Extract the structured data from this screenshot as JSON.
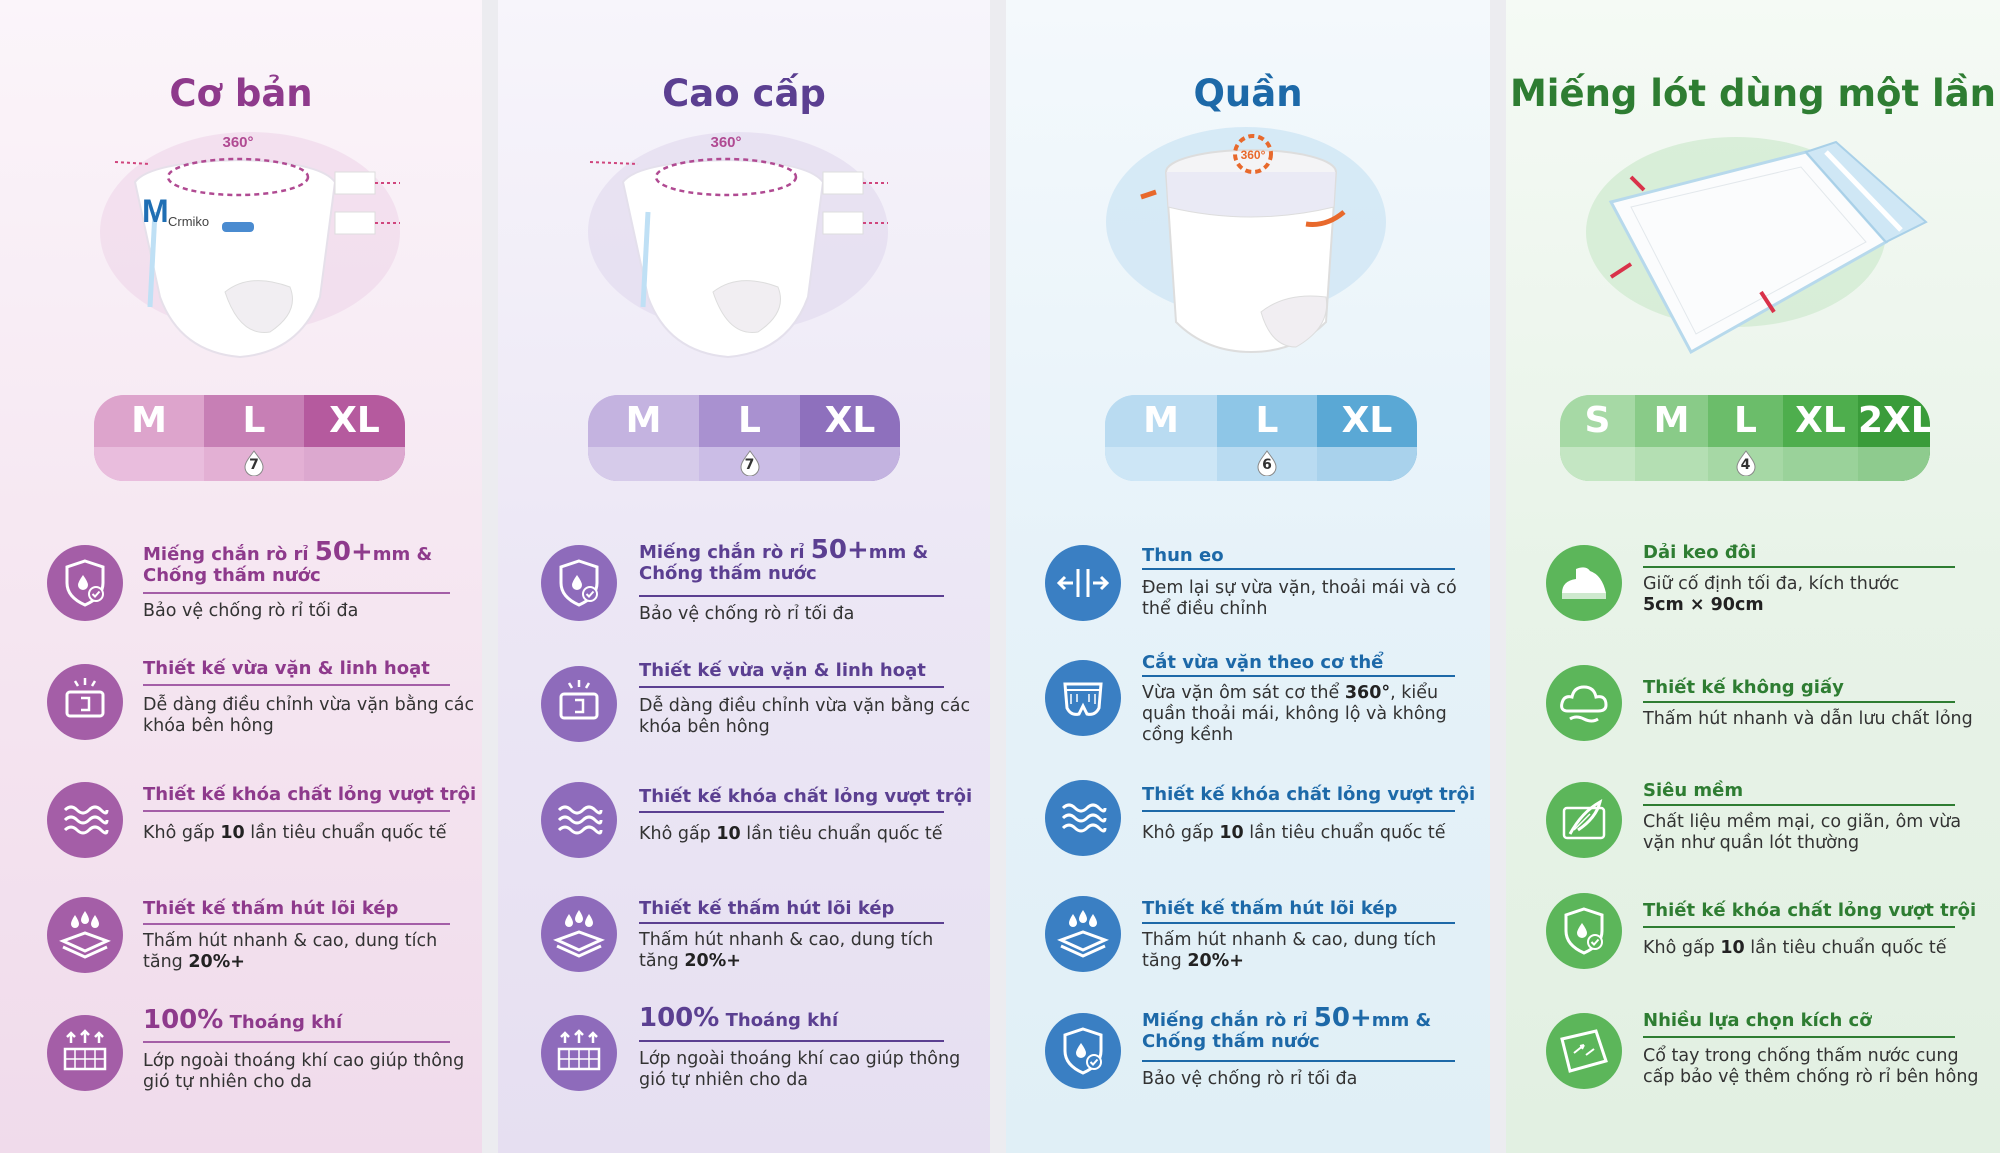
{
  "colors": {
    "panel1_accent": "#8e3a8c",
    "panel2_accent": "#5b3f91",
    "panel3_accent": "#1d69a8",
    "panel4_accent": "#2e7d32",
    "icon1": "#a45ea7",
    "icon2": "#8e6bbb",
    "icon3": "#3a7fc3",
    "icon4": "#5cb65a"
  },
  "panels": [
    {
      "title": "Cơ bản",
      "illus_label": "360°",
      "brand_text": "Crmiko",
      "size_labels": [
        "M",
        "L",
        "XL"
      ],
      "drop_count": "7",
      "features": [
        {
          "title_pre": "Miếng chắn rò rỉ ",
          "title_big": "50+",
          "title_post": "mm &",
          "title_line2": "Chống thấm nước",
          "desc": "Bảo vệ chống rò rỉ tối đa",
          "desc_bold": "",
          "icon": "shield-drop-icon"
        },
        {
          "title_pre": "Thiết kế vừa vặn & linh hoạt",
          "title_big": "",
          "title_post": "",
          "title_line2": "",
          "desc": "Dễ dàng điều chỉnh vừa vặn bằng các",
          "desc2": "khóa bên hông",
          "desc_bold": "",
          "icon": "adjust-tab-icon"
        },
        {
          "title_pre": "Thiết kế khóa chất lỏng vượt trội",
          "title_big": "",
          "title_post": "",
          "title_line2": "",
          "desc_a": "Khô gấp ",
          "desc_bold": "10",
          "desc_b": " lần tiêu chuẩn quốc tế",
          "icon": "waves-icon"
        },
        {
          "title_pre": "Thiết kế thấm hút lõi kép",
          "title_big": "",
          "title_post": "",
          "title_line2": "",
          "desc": "Thấm hút nhanh & cao, dung tích",
          "desc2_a": "tăng ",
          "desc2_bold": "20%+",
          "icon": "absorb-core-icon"
        },
        {
          "title_big_pre": "100%",
          "title_pre": " Thoáng khí",
          "title_line2": "",
          "desc": "Lớp ngoài thoáng khí cao giúp thông",
          "desc2": "gió tự nhiên cho da",
          "icon": "breathable-icon"
        }
      ]
    },
    {
      "title": "Cao cấp",
      "illus_label": "360°",
      "size_labels": [
        "M",
        "L",
        "XL"
      ],
      "drop_count": "7",
      "features": [
        {
          "title_pre": "Miếng chắn rò rỉ ",
          "title_big": "50+",
          "title_post": "mm &",
          "title_line2": "Chống thấm nước",
          "desc": "Bảo vệ chống rò rỉ tối đa",
          "icon": "shield-drop-icon"
        },
        {
          "title_pre": "Thiết kế vừa vặn & linh hoạt",
          "desc": "Dễ dàng điều chỉnh vừa vặn bằng các",
          "desc2": "khóa bên hông",
          "icon": "adjust-tab-icon"
        },
        {
          "title_pre": "Thiết kế khóa chất lỏng vượt trội",
          "desc_a": "Khô gấp ",
          "desc_bold": "10",
          "desc_b": " lần tiêu chuẩn quốc tế",
          "icon": "waves-icon"
        },
        {
          "title_pre": "Thiết kế thấm hút lõi kép",
          "desc": "Thấm hút nhanh & cao, dung tích",
          "desc2_a": "tăng ",
          "desc2_bold": "20%+",
          "icon": "absorb-core-icon"
        },
        {
          "title_big_pre": "100%",
          "title_pre": " Thoáng khí",
          "desc": "Lớp ngoài thoáng khí cao giúp thông",
          "desc2": "gió tự nhiên cho da",
          "icon": "breathable-icon"
        }
      ]
    },
    {
      "title": "Quần",
      "illus_label": "360°",
      "size_labels": [
        "M",
        "L",
        "XL"
      ],
      "drop_count": "6",
      "features": [
        {
          "title_pre": "Thun eo",
          "desc": "Đem lại sự vừa vặn, thoải mái và có",
          "desc2": "thể điều chỉnh",
          "icon": "stretch-waist-icon"
        },
        {
          "title_pre": "Cắt vừa vặn theo cơ thể",
          "desc_a": "Vừa vặn ôm sát cơ thể ",
          "desc_bold": "360°",
          "desc_b": ", kiểu",
          "desc2": "quần thoải mái, không lộ và không",
          "desc3": "cồng kềnh",
          "icon": "pants-icon"
        },
        {
          "title_pre": "Thiết kế khóa chất lỏng vượt trội",
          "desc_a": "Khô gấp ",
          "desc_bold": "10",
          "desc_b": " lần tiêu chuẩn quốc tế",
          "icon": "waves-icon"
        },
        {
          "title_pre": "Thiết kế thấm hút lõi kép",
          "desc": "Thấm hút nhanh & cao, dung tích",
          "desc2_a": "tăng ",
          "desc2_bold": "20%+",
          "icon": "absorb-core-icon"
        },
        {
          "title_pre": "Miếng chắn rò rỉ ",
          "title_big": "50+",
          "title_post": "mm &",
          "title_line2": "Chống thấm nước",
          "desc": "Bảo vệ chống rò rỉ tối đa",
          "icon": "shield-drop-icon"
        }
      ]
    },
    {
      "title": "Miếng lót dùng một lần",
      "size_labels": [
        "S",
        "M",
        "L",
        "XL",
        "2XL"
      ],
      "drop_count": "4",
      "features": [
        {
          "title_pre": "Dải keo đôi",
          "desc": "Giữ cố định tối đa, kích thước",
          "desc2_bold": "5cm × 90cm",
          "icon": "adhesive-strip-icon"
        },
        {
          "title_pre": "Thiết kế không giấy",
          "desc": "Thấm hút nhanh và dẫn lưu chất lỏng",
          "icon": "cloud-icon"
        },
        {
          "title_pre": "Siêu mềm",
          "desc": "Chất liệu mềm mại, co giãn, ôm vừa",
          "desc2": "vặn như quần lót thường",
          "icon": "feather-icon"
        },
        {
          "title_pre": "Thiết kế khóa chất lỏng vượt trội",
          "desc_a": "Khô gấp ",
          "desc_bold": "10",
          "desc_b": " lần tiêu chuẩn quốc tế",
          "icon": "shield-drop-icon"
        },
        {
          "title_pre": "Nhiều lựa chọn kích cỡ",
          "desc": "Cổ tay trong chống thấm nước cung",
          "desc2": "cấp bảo vệ thêm chống rò rỉ bên hông",
          "icon": "pad-size-icon"
        }
      ]
    }
  ]
}
